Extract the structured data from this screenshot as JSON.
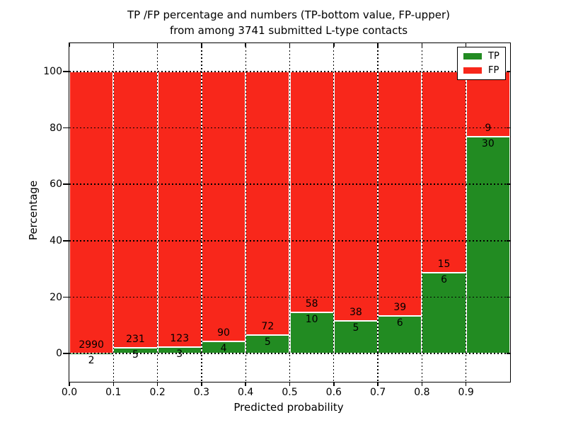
{
  "title": {
    "line1": "TP /FP percentage and numbers (TP-bottom value, FP-upper)",
    "line2": "from among 3741 submitted L-type contacts"
  },
  "chart_data": {
    "type": "bar",
    "stacked": true,
    "normalized_to_percent": true,
    "title": "TP /FP percentage and numbers (TP-bottom value, FP-upper)\nfrom among 3741 submitted L-type contacts",
    "xlabel": "Predicted probability",
    "ylabel": "Percentage",
    "total_submitted_contacts": 3741,
    "xlim": [
      0.0,
      1.0
    ],
    "ylim": [
      -10,
      110
    ],
    "xticks": [
      0.0,
      0.1,
      0.2,
      0.3,
      0.4,
      0.5,
      0.6,
      0.7,
      0.8,
      0.9
    ],
    "xtick_labels": [
      "0.0",
      "0.1",
      "0.2",
      "0.3",
      "0.4",
      "0.5",
      "0.6",
      "0.7",
      "0.8",
      "0.9"
    ],
    "yticks": [
      0,
      20,
      40,
      60,
      80,
      100
    ],
    "ytick_labels": [
      "0",
      "20",
      "40",
      "60",
      "80",
      "100"
    ],
    "grid": true,
    "grid_style": "dotted",
    "colors": {
      "tp": "#228b22",
      "fp": "#f8271b",
      "bar_edge": "#ffffff",
      "grid": "#000000"
    },
    "legend": {
      "position": "upper right",
      "entries": [
        {
          "label": "TP",
          "color": "#228b22"
        },
        {
          "label": "FP",
          "color": "#f8271b"
        }
      ]
    },
    "bins": [
      {
        "x0": 0.0,
        "x1": 0.1,
        "tp": 2,
        "fp": 2990,
        "tp_pct": 0.07
      },
      {
        "x0": 0.1,
        "x1": 0.2,
        "tp": 5,
        "fp": 231,
        "tp_pct": 2.12
      },
      {
        "x0": 0.2,
        "x1": 0.3,
        "tp": 3,
        "fp": 123,
        "tp_pct": 2.38
      },
      {
        "x0": 0.3,
        "x1": 0.4,
        "tp": 4,
        "fp": 90,
        "tp_pct": 4.26
      },
      {
        "x0": 0.4,
        "x1": 0.5,
        "tp": 5,
        "fp": 72,
        "tp_pct": 6.49
      },
      {
        "x0": 0.5,
        "x1": 0.6,
        "tp": 10,
        "fp": 58,
        "tp_pct": 14.71
      },
      {
        "x0": 0.6,
        "x1": 0.7,
        "tp": 5,
        "fp": 38,
        "tp_pct": 11.63
      },
      {
        "x0": 0.7,
        "x1": 0.8,
        "tp": 6,
        "fp": 39,
        "tp_pct": 13.33
      },
      {
        "x0": 0.8,
        "x1": 0.9,
        "tp": 6,
        "fp": 15,
        "tp_pct": 28.57
      },
      {
        "x0": 0.9,
        "x1": 1.0,
        "tp": 30,
        "fp": 9,
        "tp_pct": 76.92
      }
    ]
  }
}
